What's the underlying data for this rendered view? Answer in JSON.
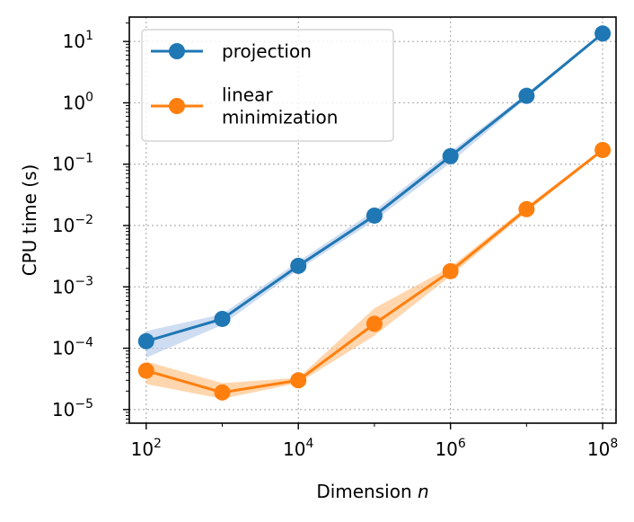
{
  "chart_data": {
    "type": "line",
    "x_scale": "log",
    "y_scale": "log",
    "xlabel_text": "Dimension ",
    "xlabel_var": "n",
    "ylabel": "CPU time (s)",
    "x": [
      100,
      1000,
      10000,
      100000,
      1000000,
      10000000,
      100000000
    ],
    "x_ticks": [
      {
        "value": 100,
        "base": "10",
        "exp": "2"
      },
      {
        "value": 10000,
        "base": "10",
        "exp": "4"
      },
      {
        "value": 1000000,
        "base": "10",
        "exp": "6"
      },
      {
        "value": 100000000,
        "base": "10",
        "exp": "8"
      }
    ],
    "y_ticks": [
      {
        "value": 1e-05,
        "base": "10",
        "exp": "−5"
      },
      {
        "value": 0.0001,
        "base": "10",
        "exp": "−4"
      },
      {
        "value": 0.001,
        "base": "10",
        "exp": "−3"
      },
      {
        "value": 0.01,
        "base": "10",
        "exp": "−2"
      },
      {
        "value": 0.1,
        "base": "10",
        "exp": "−1"
      },
      {
        "value": 1,
        "base": "10",
        "exp": "0"
      },
      {
        "value": 10,
        "base": "10",
        "exp": "1"
      }
    ],
    "xlim": [
      60,
      150000000
    ],
    "ylim": [
      6e-06,
      25
    ],
    "grid": true,
    "legend_position": "top-left",
    "series": [
      {
        "name": "projection",
        "legend_lines": [
          "projection"
        ],
        "color": "#1f77b4",
        "band_color": "#aec7e8",
        "values": [
          0.00013,
          0.0003,
          0.0022,
          0.0145,
          0.135,
          1.3,
          13.5
        ],
        "lower": [
          7e-05,
          0.00024,
          0.0019,
          0.012,
          0.105,
          1.2,
          12.8
        ],
        "upper": [
          0.00019,
          0.00036,
          0.0026,
          0.0175,
          0.16,
          1.42,
          14.3
        ]
      },
      {
        "name": "linear minimization",
        "legend_lines": [
          "linear",
          "minimization"
        ],
        "color": "#ff7f0e",
        "band_color": "#ffbb78",
        "values": [
          4.3e-05,
          1.9e-05,
          3e-05,
          0.00025,
          0.0018,
          0.0185,
          0.17
        ],
        "lower": [
          2.6e-05,
          1.5e-05,
          2.7e-05,
          0.00016,
          0.0015,
          0.0168,
          0.16
        ],
        "upper": [
          6.1e-05,
          2.7e-05,
          3.3e-05,
          0.00045,
          0.0021,
          0.0205,
          0.18
        ]
      }
    ]
  }
}
